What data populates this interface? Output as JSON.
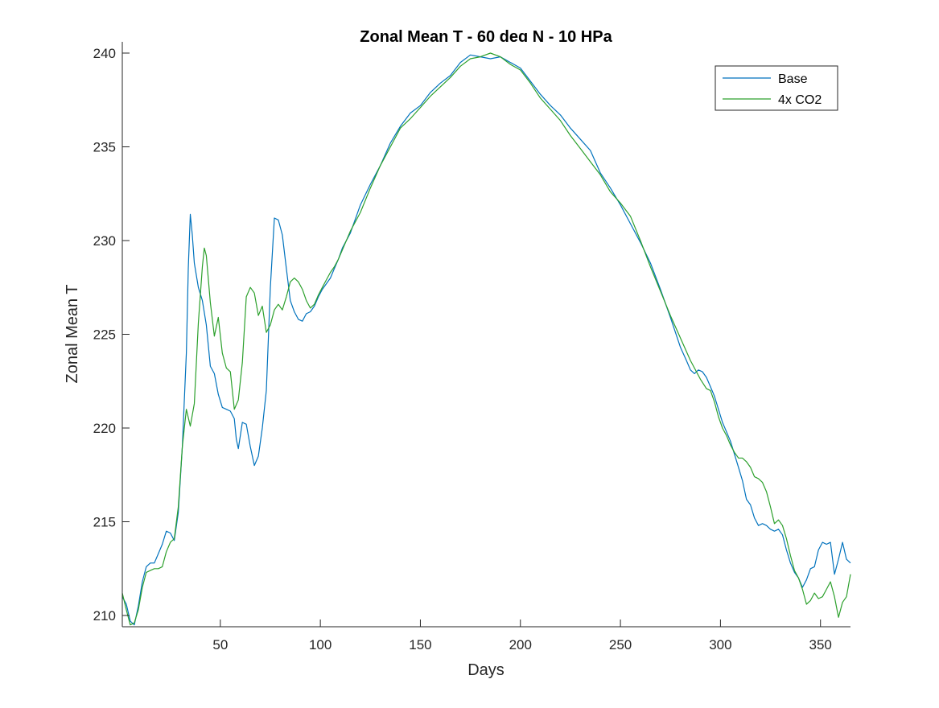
{
  "chart_data": {
    "type": "line",
    "title": "Zonal Mean T - 60 deg N - 10 HPa",
    "xlabel": "Days",
    "ylabel": "Zonal Mean T",
    "xlim": [
      1,
      365
    ],
    "ylim": [
      209.4,
      240.6
    ],
    "xticks": [
      50,
      100,
      150,
      200,
      250,
      300,
      350
    ],
    "yticks": [
      210,
      215,
      220,
      225,
      230,
      235,
      240
    ],
    "grid": false,
    "legend_position": "top-right",
    "series": [
      {
        "name": "Base",
        "color": "#0072BD",
        "points": [
          [
            1,
            211.0
          ],
          [
            3,
            210.6
          ],
          [
            5,
            209.7
          ],
          [
            7,
            209.5
          ],
          [
            9,
            210.5
          ],
          [
            11,
            211.8
          ],
          [
            13,
            212.6
          ],
          [
            15,
            212.8
          ],
          [
            17,
            212.8
          ],
          [
            19,
            213.3
          ],
          [
            21,
            213.8
          ],
          [
            23,
            214.5
          ],
          [
            25,
            214.4
          ],
          [
            27,
            214.0
          ],
          [
            29,
            215.5
          ],
          [
            31,
            219.0
          ],
          [
            33,
            224.0
          ],
          [
            34,
            228.5
          ],
          [
            35,
            231.4
          ],
          [
            36,
            230.3
          ],
          [
            37,
            228.8
          ],
          [
            39,
            227.5
          ],
          [
            41,
            226.8
          ],
          [
            43,
            225.5
          ],
          [
            45,
            223.3
          ],
          [
            47,
            222.9
          ],
          [
            49,
            221.8
          ],
          [
            51,
            221.1
          ],
          [
            53,
            221.0
          ],
          [
            55,
            220.9
          ],
          [
            57,
            220.5
          ],
          [
            58,
            219.4
          ],
          [
            59,
            218.9
          ],
          [
            61,
            220.3
          ],
          [
            63,
            220.2
          ],
          [
            65,
            219.0
          ],
          [
            67,
            218.0
          ],
          [
            69,
            218.5
          ],
          [
            71,
            220.0
          ],
          [
            73,
            222.0
          ],
          [
            75,
            227.5
          ],
          [
            77,
            231.2
          ],
          [
            79,
            231.1
          ],
          [
            81,
            230.3
          ],
          [
            83,
            228.5
          ],
          [
            85,
            226.8
          ],
          [
            87,
            226.2
          ],
          [
            89,
            225.8
          ],
          [
            91,
            225.7
          ],
          [
            93,
            226.1
          ],
          [
            95,
            226.2
          ],
          [
            97,
            226.5
          ],
          [
            99,
            227.0
          ],
          [
            101,
            227.4
          ],
          [
            103,
            227.7
          ],
          [
            105,
            228.0
          ],
          [
            107,
            228.5
          ],
          [
            109,
            229.0
          ],
          [
            111,
            229.6
          ],
          [
            115,
            230.4
          ],
          [
            120,
            231.9
          ],
          [
            125,
            233.0
          ],
          [
            130,
            234.0
          ],
          [
            135,
            235.2
          ],
          [
            140,
            236.1
          ],
          [
            145,
            236.8
          ],
          [
            150,
            237.2
          ],
          [
            155,
            237.9
          ],
          [
            160,
            238.4
          ],
          [
            165,
            238.8
          ],
          [
            170,
            239.5
          ],
          [
            175,
            239.9
          ],
          [
            180,
            239.8
          ],
          [
            185,
            239.7
          ],
          [
            190,
            239.8
          ],
          [
            195,
            239.5
          ],
          [
            200,
            239.2
          ],
          [
            205,
            238.5
          ],
          [
            210,
            237.8
          ],
          [
            215,
            237.2
          ],
          [
            220,
            236.7
          ],
          [
            225,
            236.0
          ],
          [
            230,
            235.4
          ],
          [
            235,
            234.8
          ],
          [
            240,
            233.6
          ],
          [
            245,
            232.8
          ],
          [
            250,
            231.9
          ],
          [
            255,
            230.9
          ],
          [
            260,
            229.9
          ],
          [
            265,
            228.8
          ],
          [
            270,
            227.4
          ],
          [
            275,
            225.9
          ],
          [
            280,
            224.3
          ],
          [
            283,
            223.6
          ],
          [
            285,
            223.1
          ],
          [
            287,
            222.9
          ],
          [
            289,
            223.1
          ],
          [
            291,
            223.0
          ],
          [
            293,
            222.7
          ],
          [
            295,
            222.2
          ],
          [
            297,
            221.7
          ],
          [
            299,
            221.0
          ],
          [
            301,
            220.3
          ],
          [
            303,
            219.8
          ],
          [
            305,
            219.3
          ],
          [
            307,
            218.6
          ],
          [
            309,
            217.9
          ],
          [
            311,
            217.2
          ],
          [
            313,
            216.2
          ],
          [
            315,
            215.9
          ],
          [
            317,
            215.2
          ],
          [
            319,
            214.8
          ],
          [
            321,
            214.9
          ],
          [
            323,
            214.8
          ],
          [
            325,
            214.6
          ],
          [
            327,
            214.5
          ],
          [
            329,
            214.6
          ],
          [
            331,
            214.3
          ],
          [
            333,
            213.5
          ],
          [
            335,
            212.8
          ],
          [
            337,
            212.3
          ],
          [
            339,
            212.0
          ],
          [
            341,
            211.5
          ],
          [
            343,
            211.9
          ],
          [
            345,
            212.5
          ],
          [
            347,
            212.6
          ],
          [
            349,
            213.5
          ],
          [
            351,
            213.9
          ],
          [
            353,
            213.8
          ],
          [
            355,
            213.9
          ],
          [
            357,
            212.2
          ],
          [
            359,
            213.0
          ],
          [
            361,
            213.9
          ],
          [
            363,
            213.0
          ],
          [
            365,
            212.8
          ]
        ]
      },
      {
        "name": "4x CO2",
        "color": "#2CA02C",
        "points": [
          [
            1,
            211.2
          ],
          [
            3,
            210.3
          ],
          [
            5,
            209.5
          ],
          [
            7,
            209.6
          ],
          [
            9,
            210.3
          ],
          [
            11,
            211.5
          ],
          [
            13,
            212.3
          ],
          [
            15,
            212.4
          ],
          [
            17,
            212.5
          ],
          [
            19,
            212.5
          ],
          [
            21,
            212.6
          ],
          [
            23,
            213.4
          ],
          [
            25,
            213.9
          ],
          [
            27,
            214.1
          ],
          [
            29,
            215.8
          ],
          [
            31,
            219.0
          ],
          [
            33,
            221.0
          ],
          [
            35,
            220.1
          ],
          [
            37,
            221.3
          ],
          [
            39,
            225.6
          ],
          [
            41,
            228.6
          ],
          [
            42,
            229.6
          ],
          [
            43,
            229.2
          ],
          [
            45,
            226.7
          ],
          [
            47,
            224.9
          ],
          [
            49,
            225.9
          ],
          [
            51,
            224.0
          ],
          [
            53,
            223.2
          ],
          [
            55,
            223.0
          ],
          [
            57,
            221.0
          ],
          [
            59,
            221.5
          ],
          [
            61,
            223.5
          ],
          [
            63,
            227.0
          ],
          [
            65,
            227.5
          ],
          [
            67,
            227.2
          ],
          [
            69,
            226.0
          ],
          [
            71,
            226.5
          ],
          [
            73,
            225.1
          ],
          [
            75,
            225.5
          ],
          [
            77,
            226.3
          ],
          [
            79,
            226.6
          ],
          [
            81,
            226.3
          ],
          [
            83,
            227.0
          ],
          [
            85,
            227.8
          ],
          [
            87,
            228.0
          ],
          [
            89,
            227.8
          ],
          [
            91,
            227.4
          ],
          [
            93,
            226.8
          ],
          [
            95,
            226.4
          ],
          [
            97,
            226.6
          ],
          [
            99,
            227.1
          ],
          [
            101,
            227.5
          ],
          [
            103,
            227.9
          ],
          [
            105,
            228.3
          ],
          [
            107,
            228.6
          ],
          [
            109,
            229.0
          ],
          [
            111,
            229.5
          ],
          [
            115,
            230.5
          ],
          [
            120,
            231.5
          ],
          [
            125,
            232.8
          ],
          [
            130,
            234.0
          ],
          [
            135,
            235.0
          ],
          [
            140,
            236.0
          ],
          [
            145,
            236.5
          ],
          [
            150,
            237.1
          ],
          [
            155,
            237.7
          ],
          [
            160,
            238.2
          ],
          [
            165,
            238.7
          ],
          [
            170,
            239.3
          ],
          [
            175,
            239.7
          ],
          [
            180,
            239.8
          ],
          [
            185,
            240.0
          ],
          [
            190,
            239.8
          ],
          [
            195,
            239.4
          ],
          [
            200,
            239.1
          ],
          [
            205,
            238.4
          ],
          [
            210,
            237.6
          ],
          [
            215,
            237.0
          ],
          [
            220,
            236.4
          ],
          [
            225,
            235.6
          ],
          [
            230,
            234.9
          ],
          [
            235,
            234.2
          ],
          [
            240,
            233.5
          ],
          [
            245,
            232.6
          ],
          [
            250,
            232.0
          ],
          [
            255,
            231.3
          ],
          [
            260,
            230.0
          ],
          [
            265,
            228.6
          ],
          [
            270,
            227.3
          ],
          [
            275,
            226.0
          ],
          [
            280,
            224.8
          ],
          [
            285,
            223.6
          ],
          [
            290,
            222.6
          ],
          [
            293,
            222.1
          ],
          [
            295,
            222.0
          ],
          [
            297,
            221.4
          ],
          [
            299,
            220.6
          ],
          [
            301,
            220.0
          ],
          [
            303,
            219.6
          ],
          [
            305,
            219.1
          ],
          [
            307,
            218.7
          ],
          [
            309,
            218.4
          ],
          [
            311,
            218.4
          ],
          [
            313,
            218.2
          ],
          [
            315,
            217.9
          ],
          [
            317,
            217.4
          ],
          [
            319,
            217.3
          ],
          [
            321,
            217.1
          ],
          [
            323,
            216.6
          ],
          [
            325,
            215.8
          ],
          [
            327,
            214.9
          ],
          [
            329,
            215.1
          ],
          [
            331,
            214.8
          ],
          [
            333,
            214.1
          ],
          [
            335,
            213.2
          ],
          [
            337,
            212.4
          ],
          [
            339,
            212.0
          ],
          [
            341,
            211.4
          ],
          [
            343,
            210.6
          ],
          [
            345,
            210.8
          ],
          [
            347,
            211.2
          ],
          [
            349,
            210.9
          ],
          [
            351,
            211.0
          ],
          [
            353,
            211.4
          ],
          [
            355,
            211.8
          ],
          [
            357,
            211.0
          ],
          [
            359,
            209.9
          ],
          [
            361,
            210.7
          ],
          [
            363,
            211.0
          ],
          [
            365,
            212.2
          ]
        ]
      }
    ]
  }
}
